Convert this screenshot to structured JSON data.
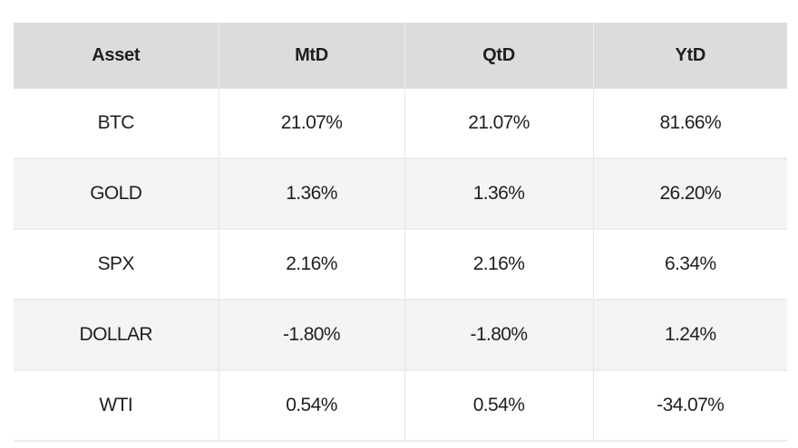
{
  "chart_data": {
    "type": "table",
    "columns": [
      "Asset",
      "MtD",
      "QtD",
      "YtD"
    ],
    "rows": [
      {
        "asset": "BTC",
        "mtd": "21.07%",
        "qtd": "21.07%",
        "ytd": "81.66%"
      },
      {
        "asset": "GOLD",
        "mtd": "1.36%",
        "qtd": "1.36%",
        "ytd": "26.20%"
      },
      {
        "asset": "SPX",
        "mtd": "2.16%",
        "qtd": "2.16%",
        "ytd": "6.34%"
      },
      {
        "asset": "DOLLAR",
        "mtd": "-1.80%",
        "qtd": "-1.80%",
        "ytd": "1.24%"
      },
      {
        "asset": "WTI",
        "mtd": "0.54%",
        "qtd": "0.54%",
        "ytd": "-34.07%"
      }
    ]
  },
  "colors": {
    "header_bg": "#dcdcdc",
    "row_alt_bg": "#f4f4f4",
    "row_bg": "#ffffff",
    "text": "#1f1f1f"
  }
}
